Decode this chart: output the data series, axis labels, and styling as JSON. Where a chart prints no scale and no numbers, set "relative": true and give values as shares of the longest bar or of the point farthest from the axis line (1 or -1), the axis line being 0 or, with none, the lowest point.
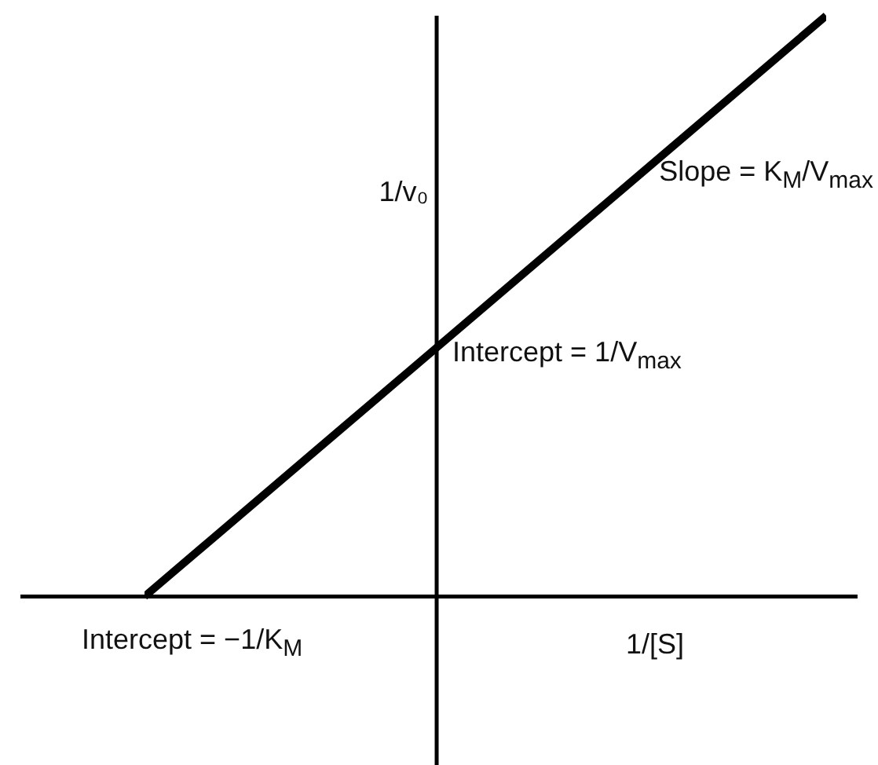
{
  "chart_data": {
    "type": "line",
    "relative": true,
    "categories": [
      null,
      null,
      null,
      null,
      null,
      null,
      null,
      null,
      null,
      null,
      null
    ],
    "values": [
      0,
      0.1,
      0.2,
      0.3,
      0.4,
      0.5,
      0.6,
      0.7,
      0.8,
      0.9,
      1
    ],
    "color": "#000000",
    "xlabel": "1/[S]",
    "ylabel": "1/v₀",
    "annotations": [
      "Slope = K$_{M}$/V$_{max}$",
      "Intercept = 1/V$_{max}$",
      "Intercept = −1/K$_{M}$"
    ]
  }
}
